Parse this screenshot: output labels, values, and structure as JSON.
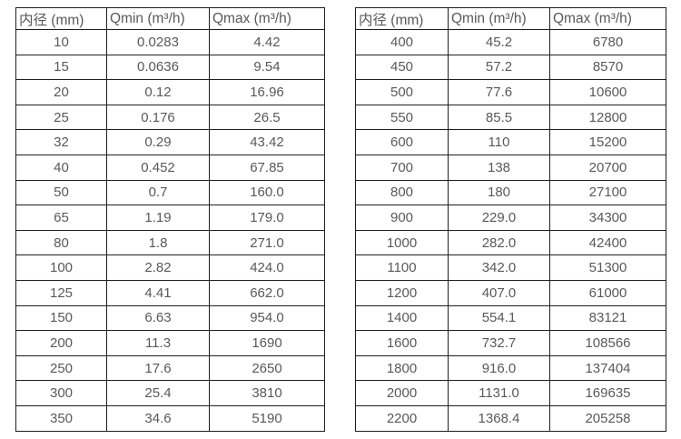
{
  "page": {
    "background": "#ffffff",
    "border_color": "#1f1f1f",
    "text_color": "#595959"
  },
  "chart_data": [
    {
      "type": "table",
      "headers": [
        "内径 (mm)",
        "Qmin (m³/h)",
        "Qmax (m³/h)"
      ],
      "rows": [
        [
          "10",
          "0.0283",
          "4.42"
        ],
        [
          "15",
          "0.0636",
          "9.54"
        ],
        [
          "20",
          "0.12",
          "16.96"
        ],
        [
          "25",
          "0.176",
          "26.5"
        ],
        [
          "32",
          "0.29",
          "43.42"
        ],
        [
          "40",
          "0.452",
          "67.85"
        ],
        [
          "50",
          "0.7",
          "160.0"
        ],
        [
          "65",
          "1.19",
          "179.0"
        ],
        [
          "80",
          "1.8",
          "271.0"
        ],
        [
          "100",
          "2.82",
          "424.0"
        ],
        [
          "125",
          "4.41",
          "662.0"
        ],
        [
          "150",
          "6.63",
          "954.0"
        ],
        [
          "200",
          "11.3",
          "1690"
        ],
        [
          "250",
          "17.6",
          "2650"
        ],
        [
          "300",
          "25.4",
          "3810"
        ],
        [
          "350",
          "34.6",
          "5190"
        ]
      ]
    },
    {
      "type": "table",
      "headers": [
        "内径 (mm)",
        "Qmin (m³/h)",
        "Qmax (m³/h)"
      ],
      "rows": [
        [
          "400",
          "45.2",
          "6780"
        ],
        [
          "450",
          "57.2",
          "8570"
        ],
        [
          "500",
          "77.6",
          "10600"
        ],
        [
          "550",
          "85.5",
          "12800"
        ],
        [
          "600",
          "110",
          "15200"
        ],
        [
          "700",
          "138",
          "20700"
        ],
        [
          "800",
          "180",
          "27100"
        ],
        [
          "900",
          "229.0",
          "34300"
        ],
        [
          "1000",
          "282.0",
          "42400"
        ],
        [
          "1100",
          "342.0",
          "51300"
        ],
        [
          "1200",
          "407.0",
          "61000"
        ],
        [
          "1400",
          "554.1",
          "83121"
        ],
        [
          "1600",
          "732.7",
          "108566"
        ],
        [
          "1800",
          "916.0",
          "137404"
        ],
        [
          "2000",
          "1131.0",
          "169635"
        ],
        [
          "2200",
          "1368.4",
          "205258"
        ]
      ]
    }
  ]
}
